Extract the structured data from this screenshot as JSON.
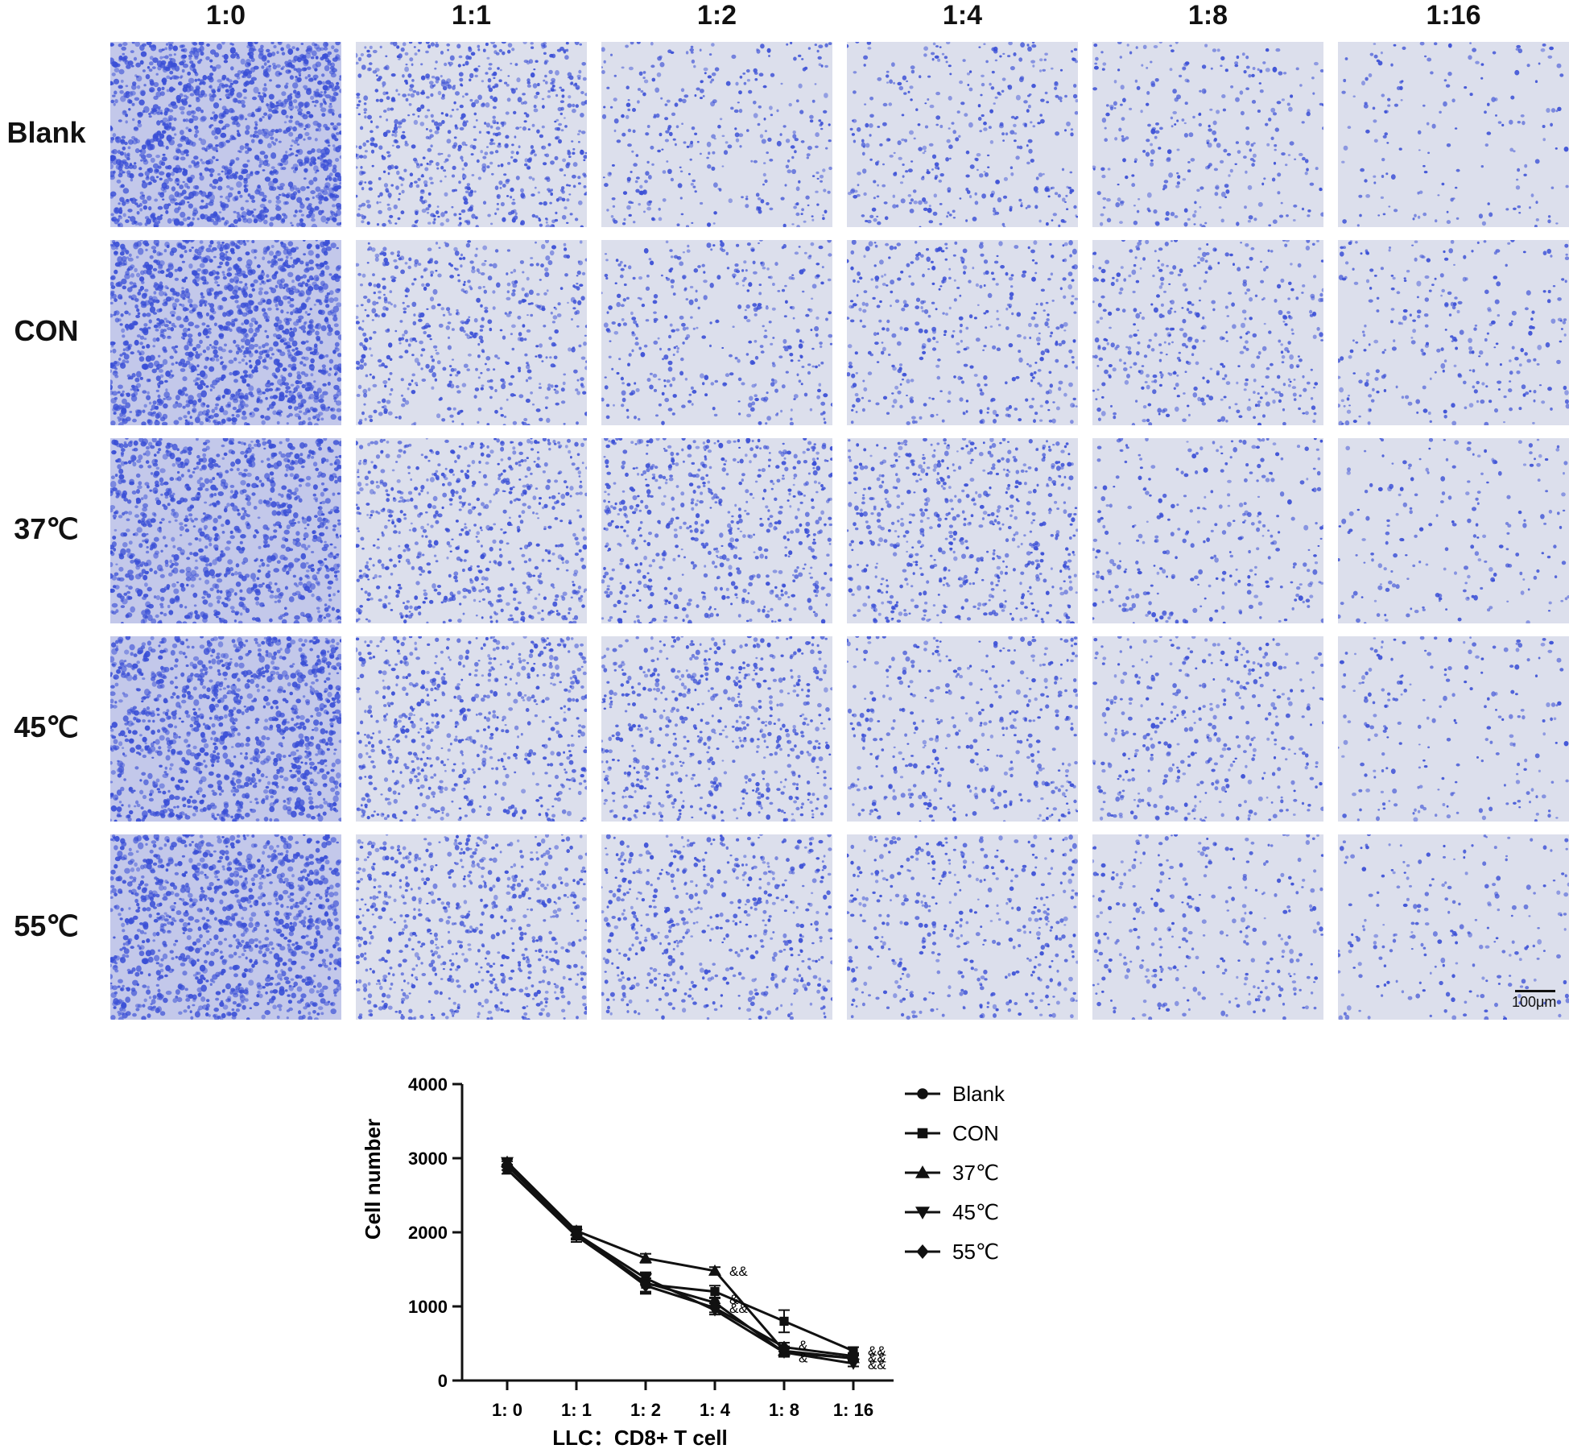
{
  "micrographs": {
    "columns": [
      "1:0",
      "1:1",
      "1:2",
      "1:4",
      "1:8",
      "1:16"
    ],
    "rows": [
      "Blank",
      "CON",
      "37℃",
      "45℃",
      "55℃"
    ],
    "density": {
      "Blank": [
        1.0,
        0.55,
        0.25,
        0.27,
        0.22,
        0.12
      ],
      "CON": [
        1.0,
        0.4,
        0.28,
        0.3,
        0.3,
        0.2
      ],
      "37℃": [
        0.75,
        0.5,
        0.45,
        0.45,
        0.22,
        0.14
      ],
      "45℃": [
        0.85,
        0.48,
        0.45,
        0.3,
        0.28,
        0.15
      ],
      "55℃": [
        0.8,
        0.48,
        0.4,
        0.3,
        0.22,
        0.15
      ]
    },
    "stain_color": "#3a4fd6",
    "scale_bar_label": "100μm"
  },
  "chart_data": {
    "type": "line",
    "categories": [
      "1: 0",
      "1: 1",
      "1: 2",
      "1: 4",
      "1: 8",
      "1: 16"
    ],
    "xlabel": "LLC：CD8+ T cell",
    "ylabel": "Cell number",
    "ylim": [
      0,
      4000
    ],
    "yticks": [
      0,
      1000,
      2000,
      3000,
      4000
    ],
    "legend_position": "right",
    "series": [
      {
        "name": "Blank",
        "marker": "circle",
        "values": [
          2900,
          1980,
          1320,
          1050,
          380,
          300
        ],
        "err": [
          60,
          80,
          120,
          60,
          50,
          40
        ]
      },
      {
        "name": "CON",
        "marker": "square",
        "values": [
          2850,
          1950,
          1300,
          1200,
          800,
          400
        ],
        "err": [
          60,
          80,
          130,
          80,
          150,
          50
        ]
      },
      {
        "name": "37℃",
        "marker": "triangle-up",
        "values": [
          2950,
          2020,
          1650,
          1480,
          400,
          300
        ],
        "err": [
          40,
          60,
          60,
          50,
          60,
          40
        ]
      },
      {
        "name": "45℃",
        "marker": "triangle-down",
        "values": [
          2950,
          1980,
          1380,
          950,
          380,
          230
        ],
        "err": [
          40,
          60,
          80,
          60,
          60,
          40
        ]
      },
      {
        "name": "55℃",
        "marker": "diamond",
        "values": [
          2920,
          1970,
          1280,
          980,
          450,
          330
        ],
        "err": [
          40,
          60,
          100,
          60,
          60,
          40
        ]
      }
    ],
    "annotations": [
      {
        "text": "&&",
        "category": "1: 4",
        "y": 1480
      },
      {
        "text": "&",
        "category": "1: 4",
        "y": 1100
      },
      {
        "text": "&&",
        "category": "1: 4",
        "y": 980
      },
      {
        "text": "&",
        "category": "1: 8",
        "y": 480
      },
      {
        "text": "&",
        "category": "1: 8",
        "y": 310
      },
      {
        "text": "&&",
        "category": "1: 16",
        "y": 400
      },
      {
        "text": "&&",
        "category": "1: 16",
        "y": 310
      },
      {
        "text": "&&",
        "category": "1: 16",
        "y": 220
      }
    ]
  }
}
